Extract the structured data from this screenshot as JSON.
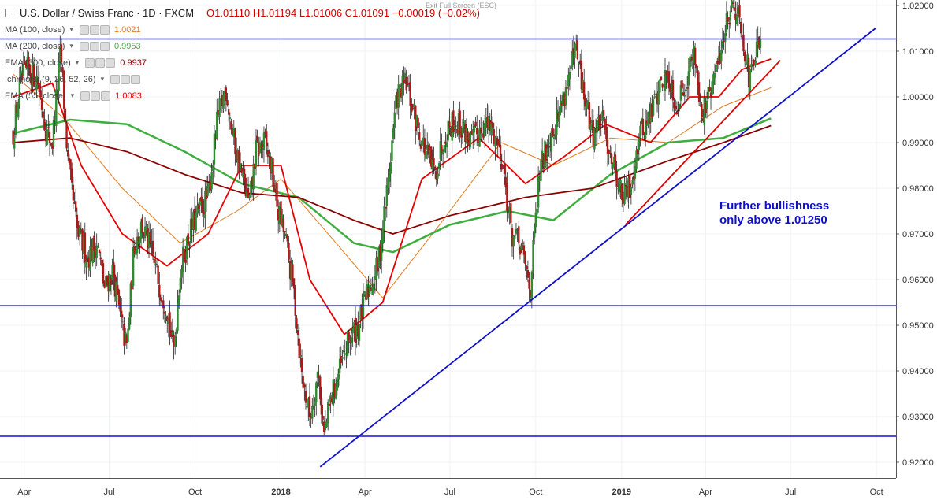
{
  "header": {
    "symbol": "U.S. Dollar / Swiss Franc · 1D · FXCM",
    "ohlc": "O1.01110  H1.01194  L1.01006  C1.01091  −0.00019 (−0.02%)",
    "exit_fullscreen": "Exit Full Screen (ESC)"
  },
  "indicators": [
    {
      "name": "MA (100, close)",
      "value": "1.0021",
      "color": "#e07b1f"
    },
    {
      "name": "MA (200, close)",
      "value": "0.9953",
      "color": "#3fae3f"
    },
    {
      "name": "EMA (300, close)",
      "value": "0.9937",
      "color": "#8b0000"
    },
    {
      "name": "Ichimoku (9, 26, 52, 26)",
      "value": "",
      "color": "#888888"
    },
    {
      "name": "EMA (55, close)",
      "value": "1.0083",
      "color": "#e60000"
    }
  ],
  "annotation": {
    "line1": "Further bullishness",
    "line2": "only above 1.01250"
  },
  "chart_data": {
    "type": "candlestick",
    "ylim": [
      0.915,
      1.025
    ],
    "yticks": [
      0.92,
      0.93,
      0.94,
      0.95,
      0.96,
      0.97,
      0.98,
      0.99,
      1.0,
      1.01,
      1.02
    ],
    "x_labels": [
      "Apr",
      "Jul",
      "Oct",
      "2018",
      "Apr",
      "Jul",
      "Oct",
      "2019",
      "Apr",
      "Jul",
      "Oct"
    ],
    "horizontal_levels": [
      {
        "label": "1.01267",
        "value": 1.01267
      },
      {
        "label": "0.95428",
        "value": 0.95428
      },
      {
        "label": "0.92570",
        "value": 0.9257
      }
    ],
    "current_price": {
      "label": "1.01091",
      "value": 1.01091
    },
    "price_path": [
      [
        "2017-03-20",
        0.992
      ],
      [
        "2017-03-28",
        1.003
      ],
      [
        "2017-04-05",
        1.006
      ],
      [
        "2017-04-15",
        1.004
      ],
      [
        "2017-04-25",
        0.992
      ],
      [
        "2017-05-01",
        0.99
      ],
      [
        "2017-05-10",
        1.01
      ],
      [
        "2017-05-18",
        0.985
      ],
      [
        "2017-05-28",
        0.97
      ],
      [
        "2017-06-08",
        0.965
      ],
      [
        "2017-06-18",
        0.968
      ],
      [
        "2017-06-26",
        0.958
      ],
      [
        "2017-07-05",
        0.962
      ],
      [
        "2017-07-14",
        0.95
      ],
      [
        "2017-07-20",
        0.945
      ],
      [
        "2017-07-28",
        0.968
      ],
      [
        "2017-08-05",
        0.972
      ],
      [
        "2017-08-15",
        0.966
      ],
      [
        "2017-08-25",
        0.958
      ],
      [
        "2017-09-01",
        0.954
      ],
      [
        "2017-09-08",
        0.944
      ],
      [
        "2017-09-15",
        0.962
      ],
      [
        "2017-09-25",
        0.97
      ],
      [
        "2017-10-05",
        0.975
      ],
      [
        "2017-10-15",
        0.978
      ],
      [
        "2017-10-25",
        0.995
      ],
      [
        "2017-11-03",
        1.002
      ],
      [
        "2017-11-10",
        0.992
      ],
      [
        "2017-11-20",
        0.983
      ],
      [
        "2017-11-28",
        0.976
      ],
      [
        "2017-12-05",
        0.988
      ],
      [
        "2017-12-15",
        0.99
      ],
      [
        "2017-12-22",
        0.984
      ],
      [
        "2017-12-29",
        0.975
      ],
      [
        "2018-01-05",
        0.97
      ],
      [
        "2018-01-15",
        0.957
      ],
      [
        "2018-01-24",
        0.938
      ],
      [
        "2018-02-01",
        0.93
      ],
      [
        "2018-02-10",
        0.94
      ],
      [
        "2018-02-16",
        0.926
      ],
      [
        "2018-02-25",
        0.935
      ],
      [
        "2018-03-05",
        0.94
      ],
      [
        "2018-03-15",
        0.947
      ],
      [
        "2018-03-25",
        0.95
      ],
      [
        "2018-04-05",
        0.958
      ],
      [
        "2018-04-15",
        0.963
      ],
      [
        "2018-04-25",
        0.98
      ],
      [
        "2018-05-05",
        1.0
      ],
      [
        "2018-05-15",
        1.003
      ],
      [
        "2018-05-25",
        0.995
      ],
      [
        "2018-06-05",
        0.988
      ],
      [
        "2018-06-15",
        0.983
      ],
      [
        "2018-06-25",
        0.992
      ],
      [
        "2018-07-05",
        0.995
      ],
      [
        "2018-07-15",
        0.993
      ],
      [
        "2018-07-25",
        0.99
      ],
      [
        "2018-08-05",
        0.994
      ],
      [
        "2018-08-15",
        0.993
      ],
      [
        "2018-08-25",
        0.988
      ],
      [
        "2018-09-05",
        0.97
      ],
      [
        "2018-09-15",
        0.967
      ],
      [
        "2018-09-25",
        0.958
      ],
      [
        "2018-10-05",
        0.983
      ],
      [
        "2018-10-15",
        0.991
      ],
      [
        "2018-10-25",
        0.996
      ],
      [
        "2018-11-05",
        1.004
      ],
      [
        "2018-11-13",
        1.01
      ],
      [
        "2018-11-22",
        1.0
      ],
      [
        "2018-12-01",
        0.992
      ],
      [
        "2018-12-10",
        0.995
      ],
      [
        "2018-12-20",
        0.988
      ],
      [
        "2019-01-02",
        0.978
      ],
      [
        "2019-01-10",
        0.98
      ],
      [
        "2019-01-20",
        0.992
      ],
      [
        "2019-01-30",
        0.995
      ],
      [
        "2019-02-10",
        1.002
      ],
      [
        "2019-02-20",
        1.005
      ],
      [
        "2019-03-01",
        0.998
      ],
      [
        "2019-03-10",
        1.003
      ],
      [
        "2019-03-20",
        1.01
      ],
      [
        "2019-03-28",
        0.996
      ],
      [
        "2019-04-05",
        1.0
      ],
      [
        "2019-04-15",
        1.008
      ],
      [
        "2019-04-25",
        1.018
      ],
      [
        "2019-05-01",
        1.021
      ],
      [
        "2019-05-10",
        1.015
      ],
      [
        "2019-05-18",
        1.003
      ],
      [
        "2019-05-25",
        1.01
      ],
      [
        "2019-05-31",
        1.0109
      ]
    ],
    "series": [
      {
        "name": "MA (100, close)",
        "color": "#e07b1f",
        "points": [
          [
            "2017-03-20",
            1.005
          ],
          [
            "2017-05-15",
            0.995
          ],
          [
            "2017-07-15",
            0.98
          ],
          [
            "2017-09-15",
            0.968
          ],
          [
            "2017-11-15",
            0.975
          ],
          [
            "2018-01-01",
            0.982
          ],
          [
            "2018-03-01",
            0.968
          ],
          [
            "2018-04-20",
            0.956
          ],
          [
            "2018-06-20",
            0.972
          ],
          [
            "2018-08-25",
            0.99
          ],
          [
            "2018-10-20",
            0.985
          ],
          [
            "2018-12-20",
            0.991
          ],
          [
            "2019-02-20",
            0.99
          ],
          [
            "2019-04-20",
            0.998
          ],
          [
            "2019-06-10",
            1.002
          ]
        ]
      },
      {
        "name": "MA (200, close)",
        "color": "#3fae3f",
        "points": [
          [
            "2017-03-20",
            0.992
          ],
          [
            "2017-05-20",
            0.995
          ],
          [
            "2017-07-20",
            0.994
          ],
          [
            "2017-09-20",
            0.988
          ],
          [
            "2017-11-20",
            0.981
          ],
          [
            "2018-01-20",
            0.978
          ],
          [
            "2018-03-20",
            0.968
          ],
          [
            "2018-05-01",
            0.966
          ],
          [
            "2018-07-01",
            0.972
          ],
          [
            "2018-09-01",
            0.975
          ],
          [
            "2018-10-20",
            0.973
          ],
          [
            "2018-12-20",
            0.983
          ],
          [
            "2019-02-20",
            0.99
          ],
          [
            "2019-04-20",
            0.991
          ],
          [
            "2019-06-10",
            0.9953
          ]
        ]
      },
      {
        "name": "EMA (300, close)",
        "color": "#8b0000",
        "points": [
          [
            "2017-03-20",
            0.99
          ],
          [
            "2017-05-20",
            0.991
          ],
          [
            "2017-07-20",
            0.988
          ],
          [
            "2017-09-20",
            0.983
          ],
          [
            "2017-11-20",
            0.979
          ],
          [
            "2018-01-20",
            0.978
          ],
          [
            "2018-03-20",
            0.973
          ],
          [
            "2018-05-01",
            0.97
          ],
          [
            "2018-07-01",
            0.974
          ],
          [
            "2018-09-20",
            0.978
          ],
          [
            "2018-12-01",
            0.98
          ],
          [
            "2019-02-20",
            0.986
          ],
          [
            "2019-04-20",
            0.99
          ],
          [
            "2019-06-10",
            0.9937
          ]
        ]
      },
      {
        "name": "EMA (55, close)",
        "color": "#e60000",
        "points": [
          [
            "2017-03-20",
            1.0
          ],
          [
            "2017-05-01",
            1.003
          ],
          [
            "2017-06-01",
            0.985
          ],
          [
            "2017-07-15",
            0.97
          ],
          [
            "2017-09-01",
            0.963
          ],
          [
            "2017-10-15",
            0.97
          ],
          [
            "2017-11-20",
            0.985
          ],
          [
            "2018-01-01",
            0.985
          ],
          [
            "2018-02-01",
            0.96
          ],
          [
            "2018-03-10",
            0.948
          ],
          [
            "2018-04-20",
            0.955
          ],
          [
            "2018-06-01",
            0.982
          ],
          [
            "2018-08-01",
            0.991
          ],
          [
            "2018-09-20",
            0.981
          ],
          [
            "2018-11-01",
            0.987
          ],
          [
            "2018-12-15",
            0.994
          ],
          [
            "2019-02-01",
            0.99
          ],
          [
            "2019-03-15",
            1.0
          ],
          [
            "2019-04-15",
            1.0
          ],
          [
            "2019-05-10",
            1.006
          ],
          [
            "2019-06-10",
            1.0083
          ]
        ]
      }
    ],
    "trendlines": [
      {
        "color": "#1010cc",
        "from": [
          "2018-02-12",
          0.919
        ],
        "to": [
          "2019-09-30",
          1.015
        ]
      },
      {
        "color": "#dd0000",
        "from": [
          "2019-01-05",
          0.972
        ],
        "to": [
          "2019-06-20",
          1.008
        ]
      }
    ]
  }
}
